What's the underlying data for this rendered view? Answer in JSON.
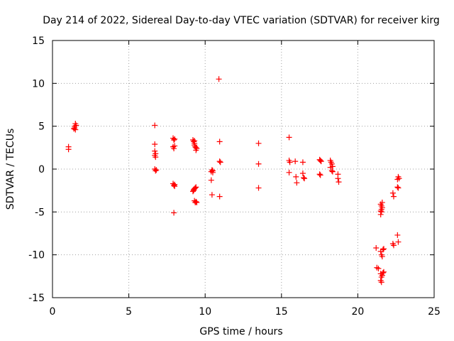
{
  "chart_data": {
    "type": "scatter",
    "title": "Day 214 of 2022, Sidereal Day-to-day VTEC variation (SDTVAR) for receiver kirg",
    "xlabel": "GPS time / hours",
    "ylabel": "SDTVAR / TECUs",
    "xlim": [
      0,
      25
    ],
    "ylim": [
      -15,
      15
    ],
    "xticks": [
      0,
      5,
      10,
      15,
      20,
      25
    ],
    "yticks": [
      -15,
      -10,
      -5,
      0,
      5,
      10,
      15
    ],
    "grid": true,
    "marker": "plus",
    "color": "#ff0000",
    "series": [
      {
        "name": "SDTVAR",
        "points": [
          [
            1.05,
            2.6
          ],
          [
            1.05,
            2.3
          ],
          [
            1.4,
            4.7
          ],
          [
            1.45,
            4.8
          ],
          [
            1.45,
            5.0
          ],
          [
            1.5,
            5.3
          ],
          [
            1.5,
            4.6
          ],
          [
            1.55,
            5.1
          ],
          [
            6.7,
            5.1
          ],
          [
            6.7,
            2.9
          ],
          [
            6.7,
            2.1
          ],
          [
            6.7,
            1.6
          ],
          [
            6.75,
            1.4
          ],
          [
            6.75,
            1.8
          ],
          [
            6.7,
            0.0
          ],
          [
            6.75,
            -0.2
          ],
          [
            6.8,
            -0.1
          ],
          [
            7.9,
            3.6
          ],
          [
            7.95,
            3.4
          ],
          [
            8.0,
            3.5
          ],
          [
            7.9,
            2.6
          ],
          [
            7.95,
            2.4
          ],
          [
            8.0,
            2.7
          ],
          [
            7.9,
            -1.7
          ],
          [
            7.95,
            -1.9
          ],
          [
            8.0,
            -2.0
          ],
          [
            8.0,
            -1.8
          ],
          [
            7.95,
            -5.1
          ],
          [
            9.2,
            3.4
          ],
          [
            9.25,
            3.2
          ],
          [
            9.3,
            3.0
          ],
          [
            9.3,
            2.8
          ],
          [
            9.35,
            2.6
          ],
          [
            9.4,
            2.5
          ],
          [
            9.4,
            2.2
          ],
          [
            9.45,
            2.4
          ],
          [
            9.3,
            3.3
          ],
          [
            9.2,
            -2.6
          ],
          [
            9.25,
            -2.4
          ],
          [
            9.3,
            -2.3
          ],
          [
            9.35,
            -2.2
          ],
          [
            9.4,
            -2.1
          ],
          [
            9.25,
            -2.5
          ],
          [
            9.3,
            -3.7
          ],
          [
            9.35,
            -3.9
          ],
          [
            9.4,
            -3.8
          ],
          [
            9.45,
            -3.9
          ],
          [
            10.4,
            -0.3
          ],
          [
            10.45,
            -0.1
          ],
          [
            10.5,
            -0.4
          ],
          [
            10.4,
            -1.3
          ],
          [
            10.45,
            -3.0
          ],
          [
            10.5,
            -0.2
          ],
          [
            10.9,
            10.5
          ],
          [
            10.95,
            3.2
          ],
          [
            10.95,
            0.9
          ],
          [
            11.0,
            0.8
          ],
          [
            10.95,
            -3.2
          ],
          [
            13.5,
            3.0
          ],
          [
            13.5,
            0.6
          ],
          [
            13.5,
            -2.2
          ],
          [
            15.5,
            3.7
          ],
          [
            15.5,
            1.0
          ],
          [
            15.55,
            0.8
          ],
          [
            15.5,
            -0.4
          ],
          [
            15.9,
            0.9
          ],
          [
            15.95,
            -0.9
          ],
          [
            16.0,
            -1.6
          ],
          [
            16.4,
            0.8
          ],
          [
            16.4,
            -0.5
          ],
          [
            16.45,
            -1.0
          ],
          [
            16.5,
            -1.1
          ],
          [
            17.5,
            1.1
          ],
          [
            17.55,
            1.0
          ],
          [
            17.6,
            0.9
          ],
          [
            17.5,
            -0.6
          ],
          [
            17.55,
            -0.7
          ],
          [
            18.2,
            1.0
          ],
          [
            18.25,
            0.8
          ],
          [
            18.3,
            0.6
          ],
          [
            18.35,
            0.3
          ],
          [
            18.2,
            0.2
          ],
          [
            18.3,
            -0.2
          ],
          [
            18.35,
            -0.3
          ],
          [
            18.7,
            -0.6
          ],
          [
            18.7,
            -1.1
          ],
          [
            18.75,
            -1.5
          ],
          [
            21.2,
            -9.2
          ],
          [
            21.25,
            -11.5
          ],
          [
            21.35,
            -11.6
          ],
          [
            21.5,
            -4.1
          ],
          [
            21.55,
            -4.3
          ],
          [
            21.6,
            -4.5
          ],
          [
            21.6,
            -3.9
          ],
          [
            21.5,
            -4.9
          ],
          [
            21.55,
            -5.0
          ],
          [
            21.5,
            -5.3
          ],
          [
            21.55,
            -4.7
          ],
          [
            21.5,
            -9.6
          ],
          [
            21.55,
            -10.0
          ],
          [
            21.6,
            -10.2
          ],
          [
            21.65,
            -9.4
          ],
          [
            21.7,
            -9.3
          ],
          [
            21.5,
            -12.2
          ],
          [
            21.55,
            -12.6
          ],
          [
            21.6,
            -12.4
          ],
          [
            21.5,
            -13.0
          ],
          [
            21.55,
            -13.2
          ],
          [
            21.65,
            -12.1
          ],
          [
            21.7,
            -12.0
          ],
          [
            22.3,
            -2.8
          ],
          [
            22.35,
            -3.2
          ],
          [
            22.3,
            -8.7
          ],
          [
            22.35,
            -8.9
          ],
          [
            22.6,
            -2.1
          ],
          [
            22.65,
            -2.2
          ],
          [
            22.6,
            -1.2
          ],
          [
            22.65,
            -0.9
          ],
          [
            22.7,
            -1.1
          ],
          [
            22.6,
            -7.7
          ],
          [
            22.65,
            -8.5
          ]
        ]
      }
    ]
  }
}
